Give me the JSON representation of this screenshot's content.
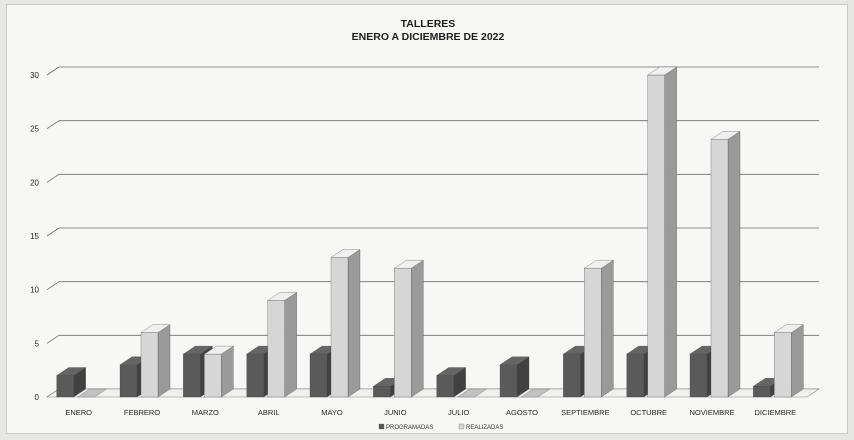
{
  "chart_data": {
    "type": "bar",
    "title": "TALLERES",
    "subtitle": "ENERO A DICIEMBRE DE 2022",
    "xlabel": "",
    "ylabel": "",
    "categories": [
      "ENERO",
      "FEBRERO",
      "MARZO",
      "ABRIL",
      "MAYO",
      "JUNIO",
      "JULIO",
      "AGOSTO",
      "SEPTIEMBRE",
      "OCTUBRE",
      "NOVIEMBRE",
      "DICIEMBRE"
    ],
    "series": [
      {
        "name": "PROGRAMADAS",
        "values": [
          2,
          3,
          4,
          4,
          4,
          1,
          2,
          3,
          4,
          4,
          4,
          1
        ],
        "color": "#5a5a5a"
      },
      {
        "name": "REALIZADAS",
        "values": [
          0,
          6,
          4,
          9,
          13,
          12,
          0,
          0,
          12,
          30,
          24,
          6
        ],
        "color": "#d6d6d6"
      }
    ],
    "ylim": [
      0,
      30
    ],
    "yticks": [
      0,
      5,
      10,
      15,
      20,
      25,
      30
    ],
    "grid": true,
    "legend": "bottom",
    "style": "3d-column"
  }
}
